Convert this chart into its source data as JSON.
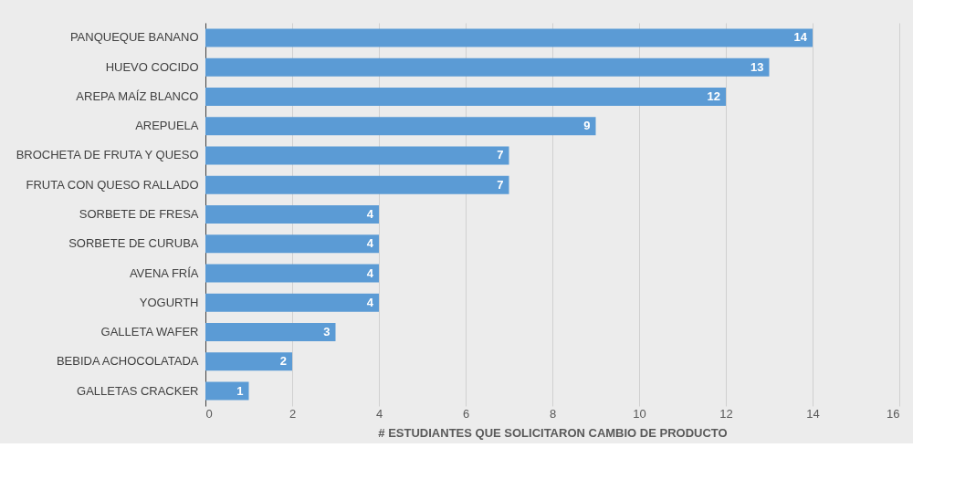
{
  "chart_data": {
    "type": "bar",
    "orientation": "horizontal",
    "xlabel": "# ESTUDIANTES QUE SOLICITARON CAMBIO DE PRODUCTO",
    "categories": [
      "PANQUEQUE  BANANO",
      "HUEVO COCIDO",
      "AREPA MAÍZ BLANCO",
      "AREPUELA",
      "BROCHETA DE FRUTA Y QUESO",
      "FRUTA CON QUESO RALLADO",
      "SORBETE DE FRESA",
      "SORBETE DE CURUBA",
      "AVENA FRÍA",
      "YOGURTH",
      "GALLETA WAFER",
      "BEBIDA ACHOCOLATADA",
      "GALLETAS CRACKER"
    ],
    "values": [
      14,
      13,
      12,
      9,
      7,
      7,
      4,
      4,
      4,
      4,
      3,
      2,
      1
    ],
    "color": "#5b9bd5",
    "xlim": [
      0,
      16
    ],
    "xticks": [
      0,
      2,
      4,
      6,
      8,
      10,
      12,
      14,
      16
    ],
    "grid": "x",
    "data_labels": true
  }
}
